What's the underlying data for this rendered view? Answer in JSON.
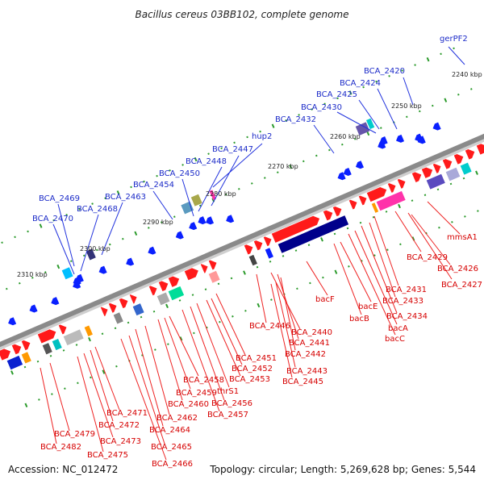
{
  "title": "Bacillus cereus 03BB102, complete genome",
  "footer": {
    "accession": "Accession: NC_012472",
    "topology": "Topology: circular; Length: 5,269,628 bp; Genes: 5,544"
  },
  "colors": {
    "backbone": "#8a8a8a",
    "forward_gene": "#ff1a1a",
    "reverse_gene": "#0a20ff",
    "tick": "#2a9a2a",
    "forward_label": "#d60000",
    "reverse_label": "#1c2bc8"
  },
  "kbp_labels": [
    "2240 kbp",
    "2250 kbp",
    "2260 kbp",
    "2270 kbp",
    "2280 kbp",
    "2290 kbp",
    "2300 kbp",
    "2310 kbp"
  ],
  "top_labels": [
    "gerPF2",
    "BCA_2420",
    "BCA_2424",
    "BCA_2425",
    "BCA_2430",
    "BCA_2432",
    "hup2",
    "BCA_2447",
    "BCA_2448",
    "BCA_2450",
    "BCA_2454",
    "BCA_2463",
    "BCA_2469",
    "BCA_2468",
    "BCA_2470"
  ],
  "bottom_labels": [
    "mmsA1",
    "BCA_2429",
    "BCA_2426",
    "BCA_2427",
    "BCA_2431",
    "BCA_2433",
    "BCA_2434",
    "bacA",
    "bacC",
    "bacE",
    "bacB",
    "bacF",
    "BCA_2446",
    "BCA_2440",
    "BCA_2441",
    "BCA_2442",
    "BCA_2443",
    "BCA_2445",
    "BCA_2451",
    "BCA_2452",
    "BCA_2453",
    "thrS1",
    "BCA_2456",
    "BCA_2457",
    "BCA_2458",
    "BCA_2459",
    "BCA_2460",
    "BCA_2462",
    "BCA_2464",
    "BCA_2465",
    "BCA_2466",
    "BCA_2471",
    "BCA_2472",
    "BCA_2473",
    "BCA_2475",
    "BCA_2479",
    "BCA_2482"
  ]
}
